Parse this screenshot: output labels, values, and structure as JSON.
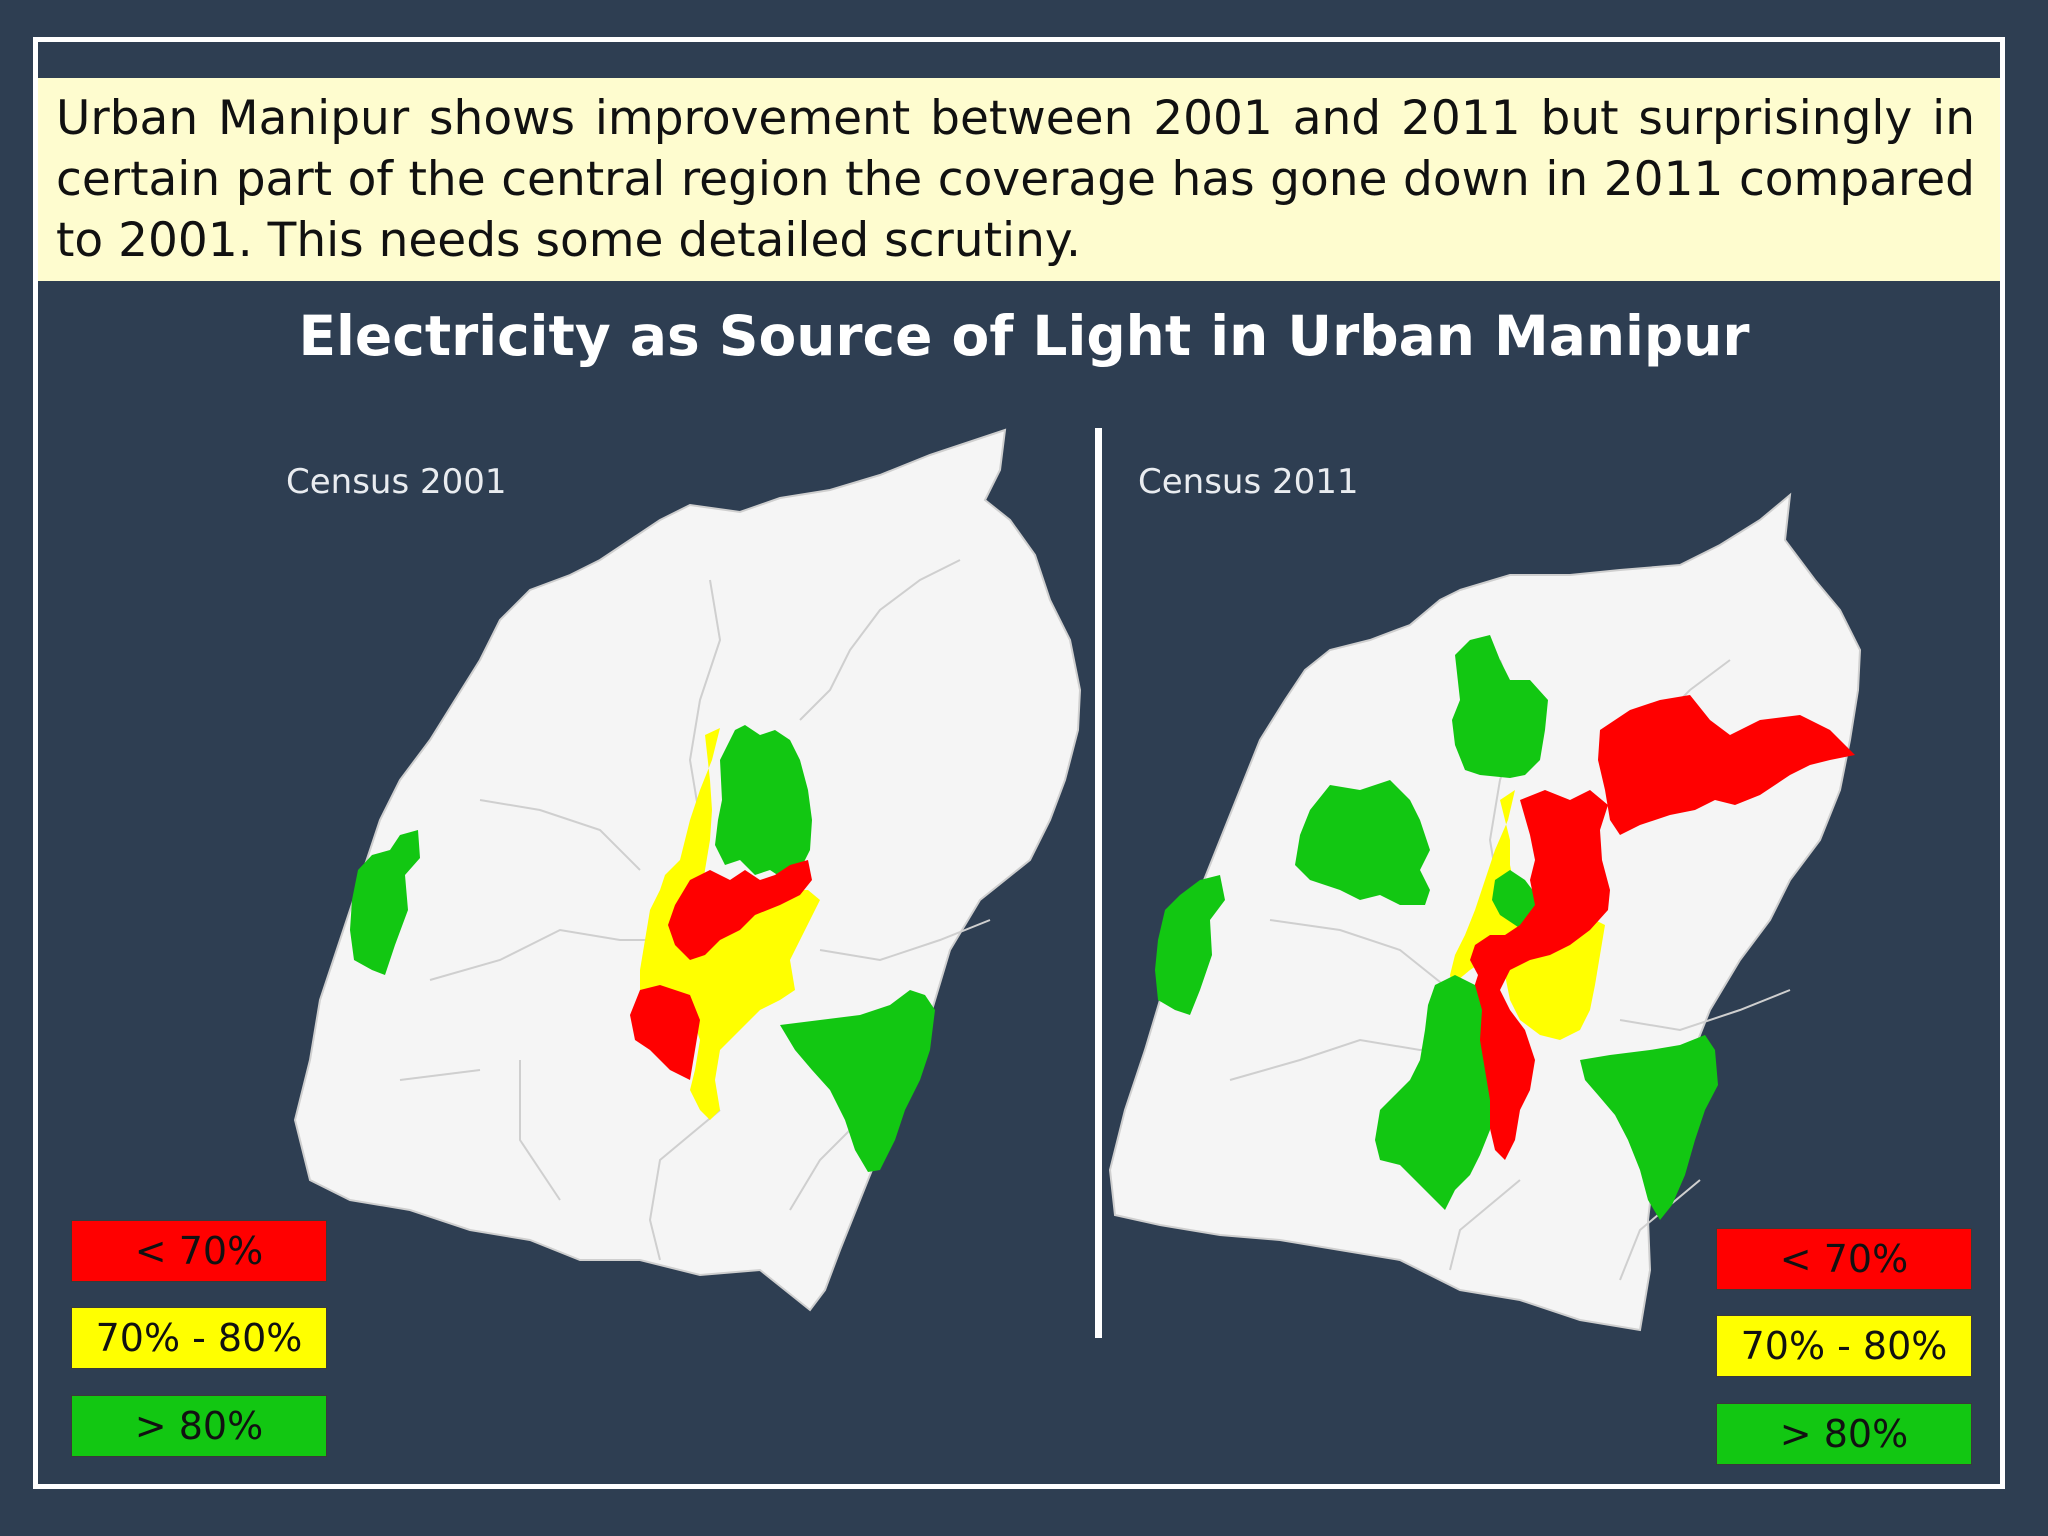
{
  "note_text": "Urban Manipur shows improvement between 2001 and 2011 but surprisingly in certain part of the central region the coverage has gone down in 2011 compared to 2001. This needs some detailed scrutiny.",
  "title": "Electricity as Source of Light in Urban Manipur",
  "colors": {
    "background": "#2e3e52",
    "note_bg": "#fefccf",
    "map_base": "#f5f5f5",
    "low": "#ff0000",
    "mid": "#ffff00",
    "high": "#12c712"
  },
  "maps": [
    {
      "label": "Census 2001",
      "legend": [
        {
          "label": "< 70%",
          "category": "low"
        },
        {
          "label": "70% - 80%",
          "category": "mid"
        },
        {
          "label": "> 80%",
          "category": "high"
        }
      ]
    },
    {
      "label": "Census 2011",
      "legend": [
        {
          "label": "< 70%",
          "category": "low"
        },
        {
          "label": "70% - 80%",
          "category": "mid"
        },
        {
          "label": "> 80%",
          "category": "high"
        }
      ]
    }
  ]
}
